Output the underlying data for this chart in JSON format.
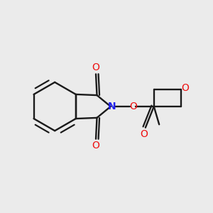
{
  "bg_color": "#ebebeb",
  "bond_color": "#1a1a1a",
  "N_color": "#2020ee",
  "O_color": "#ee1010",
  "lw": 1.7,
  "dbo": 0.012,
  "figsize": [
    3.0,
    3.0
  ],
  "dpi": 100,
  "xlim": [
    0.0,
    1.0
  ],
  "ylim": [
    0.1,
    0.9
  ]
}
